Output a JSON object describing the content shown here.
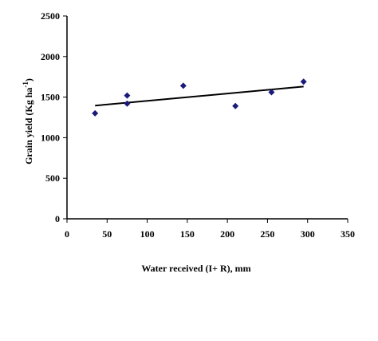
{
  "chart_data": {
    "type": "scatter",
    "title": "",
    "xlabel": "Water received (I+ R), mm",
    "ylabel": {
      "main": "Grain yield (Kg ha",
      "sup": "-1",
      "close": ")"
    },
    "xlim": [
      0,
      350
    ],
    "ylim": [
      0,
      2500
    ],
    "xticks": [
      0,
      50,
      100,
      150,
      200,
      250,
      300,
      350
    ],
    "yticks": [
      0,
      500,
      1000,
      1500,
      2000,
      2500
    ],
    "grid": false,
    "legend": "none",
    "marker": "diamond",
    "colors": {
      "marker": "#1a1a7a",
      "trendline": "#000000",
      "axes": "#000000"
    },
    "series": [
      {
        "points": [
          {
            "x": 35,
            "y": 1300
          },
          {
            "x": 75,
            "y": 1420
          },
          {
            "x": 75,
            "y": 1520
          },
          {
            "x": 145,
            "y": 1640
          },
          {
            "x": 210,
            "y": 1390
          },
          {
            "x": 255,
            "y": 1560
          },
          {
            "x": 295,
            "y": 1690
          }
        ]
      }
    ],
    "trendline": {
      "type": "linear",
      "x_start": 35,
      "y_start": 1395,
      "x_end": 295,
      "y_end": 1630
    }
  }
}
